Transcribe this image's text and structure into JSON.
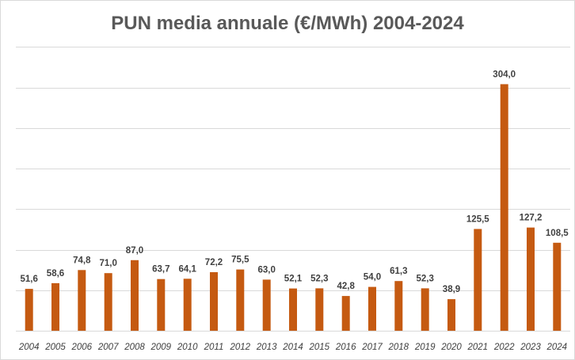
{
  "chart_data": {
    "type": "bar",
    "title": "PUN media annuale (€/MWh) 2004-2024",
    "xlabel": "",
    "ylabel": "",
    "ylim": [
      0,
      350
    ],
    "grid": true,
    "categories": [
      "2004",
      "2005",
      "2006",
      "2007",
      "2008",
      "2009",
      "2010",
      "2011",
      "2012",
      "2013",
      "2014",
      "2015",
      "2016",
      "2017",
      "2018",
      "2019",
      "2020",
      "2021",
      "2022",
      "2023",
      "2024"
    ],
    "values": [
      51.6,
      58.6,
      74.8,
      71.0,
      87.0,
      63.7,
      64.1,
      72.2,
      75.5,
      63.0,
      52.1,
      52.3,
      42.8,
      54.0,
      61.3,
      52.3,
      38.9,
      125.5,
      304.0,
      127.2,
      108.5
    ],
    "data_labels": [
      "51,6",
      "58,6",
      "74,8",
      "71,0",
      "87,0",
      "63,7",
      "64,1",
      "72,2",
      "75,5",
      "63,0",
      "52,1",
      "52,3",
      "42,8",
      "54,0",
      "61,3",
      "52,3",
      "38,9",
      "125,5",
      "304,0",
      "127,2",
      "108,5"
    ],
    "bar_color": "#c55a11"
  }
}
